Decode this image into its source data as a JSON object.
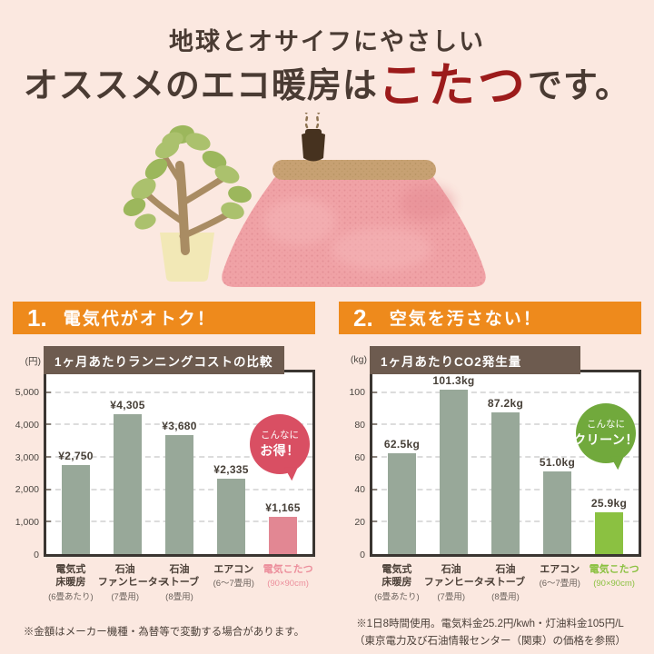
{
  "page": {
    "background": "#fbe8e0",
    "accent_orange": "#ee8a1c",
    "accent_red": "#9c1b1b",
    "chart_title_bg": "#6d5b4f",
    "chart_border": "#3a3531"
  },
  "header": {
    "subtitle": "地球とオサイフにやさしい",
    "title_prefix": "オススメのエコ暖房は",
    "title_highlight": "こたつ",
    "title_suffix": "です。"
  },
  "illustration": {
    "icons": [
      "potted-plant-icon",
      "kotatsu-icon",
      "teapot-steam-icon"
    ]
  },
  "sections": [
    {
      "number": "1.",
      "banner": "電気代がオトク！",
      "footnote_lines": [
        "※金額はメーカー機種・為替等で変動する場合があります。"
      ]
    },
    {
      "number": "2.",
      "banner": "空気を汚さない！",
      "footnote_lines": [
        "※1日8時間使用。電気料金25.2円/kwh・灯油料金105円/L",
        "（東京電力及び石油情報センター（関東）の価格を参照）"
      ]
    }
  ],
  "chart_data": [
    {
      "type": "bar",
      "title": "1ヶ月あたりランニングコストの比較",
      "unit": "(円)",
      "ylim": [
        0,
        5600
      ],
      "yticks": [
        0,
        1000,
        2000,
        3000,
        4000,
        5000
      ],
      "ytick_labels": [
        "0",
        "1,000",
        "2,000",
        "3,000",
        "4,000",
        "5,000"
      ],
      "categories": [
        {
          "lines": [
            "電気式",
            "床暖房"
          ],
          "note": "(6畳あたり)"
        },
        {
          "lines": [
            "石油",
            "ファンヒーター"
          ],
          "note": "(7畳用)"
        },
        {
          "lines": [
            "石油",
            "ストーブ"
          ],
          "note": "(8畳用)"
        },
        {
          "lines": [
            "エアコン"
          ],
          "note": "(6〜7畳用)"
        },
        {
          "lines": [
            "電気こたつ"
          ],
          "note": "(90×90cm)"
        }
      ],
      "values": [
        2750,
        4305,
        3680,
        2335,
        1165
      ],
      "value_labels": [
        "¥2,750",
        "¥4,305",
        "¥3,680",
        "¥2,335",
        "¥1,165"
      ],
      "bar_color": "#98a899",
      "highlight_index": 4,
      "highlight_color": "#e28793",
      "category_color": "#4c4038",
      "category_highlight_color": "#ec8f9c",
      "grid": true,
      "badge": {
        "lines": [
          "こんなに",
          "お得！"
        ],
        "color": "#d94f63"
      }
    },
    {
      "type": "bar",
      "title": "1ヶ月あたりCO2発生量",
      "unit": "(kg)",
      "ylim": [
        0,
        112
      ],
      "yticks": [
        0,
        20,
        40,
        60,
        80,
        100
      ],
      "ytick_labels": [
        "0",
        "20",
        "40",
        "60",
        "80",
        "100"
      ],
      "categories": [
        {
          "lines": [
            "電気式",
            "床暖房"
          ],
          "note": "(6畳あたり)"
        },
        {
          "lines": [
            "石油",
            "ファンヒーター"
          ],
          "note": "(7畳用)"
        },
        {
          "lines": [
            "石油",
            "ストーブ"
          ],
          "note": "(8畳用)"
        },
        {
          "lines": [
            "エアコン"
          ],
          "note": "(6〜7畳用)"
        },
        {
          "lines": [
            "電気こたつ"
          ],
          "note": "(90×90cm)"
        }
      ],
      "values": [
        62.5,
        101.3,
        87.2,
        51.0,
        25.9
      ],
      "value_labels": [
        "62.5kg",
        "101.3kg",
        "87.2kg",
        "51.0kg",
        "25.9kg"
      ],
      "bar_color": "#98a899",
      "highlight_index": 4,
      "highlight_color": "#8bc141",
      "category_color": "#4c4038",
      "category_highlight_color": "#8bc141",
      "grid": true,
      "badge": {
        "lines": [
          "こんなに",
          "クリーン！"
        ],
        "color": "#71a93c"
      }
    }
  ]
}
